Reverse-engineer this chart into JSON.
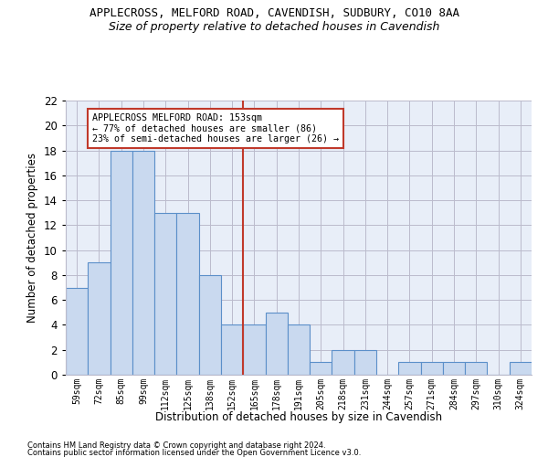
{
  "title1": "APPLECROSS, MELFORD ROAD, CAVENDISH, SUDBURY, CO10 8AA",
  "title2": "Size of property relative to detached houses in Cavendish",
  "xlabel": "Distribution of detached houses by size in Cavendish",
  "ylabel": "Number of detached properties",
  "bar_labels": [
    "59sqm",
    "72sqm",
    "85sqm",
    "99sqm",
    "112sqm",
    "125sqm",
    "138sqm",
    "152sqm",
    "165sqm",
    "178sqm",
    "191sqm",
    "205sqm",
    "218sqm",
    "231sqm",
    "244sqm",
    "257sqm",
    "271sqm",
    "284sqm",
    "297sqm",
    "310sqm",
    "324sqm"
  ],
  "bar_values": [
    7,
    9,
    18,
    18,
    13,
    13,
    8,
    4,
    4,
    5,
    4,
    1,
    2,
    2,
    0,
    1,
    1,
    1,
    1,
    0,
    1
  ],
  "bar_color": "#c9d9ef",
  "bar_edge_color": "#5b8fc9",
  "bar_edge_width": 0.8,
  "vline_x": 7.5,
  "vline_color": "#c0392b",
  "annotation_text": "APPLECROSS MELFORD ROAD: 153sqm\n← 77% of detached houses are smaller (86)\n23% of semi-detached houses are larger (26) →",
  "annotation_box_color": "white",
  "annotation_box_edge": "#c0392b",
  "ylim": [
    0,
    22
  ],
  "yticks": [
    0,
    2,
    4,
    6,
    8,
    10,
    12,
    14,
    16,
    18,
    20,
    22
  ],
  "grid_color": "#bbbbcc",
  "bg_color": "#e8eef8",
  "footer1": "Contains HM Land Registry data © Crown copyright and database right 2024.",
  "footer2": "Contains public sector information licensed under the Open Government Licence v3.0."
}
